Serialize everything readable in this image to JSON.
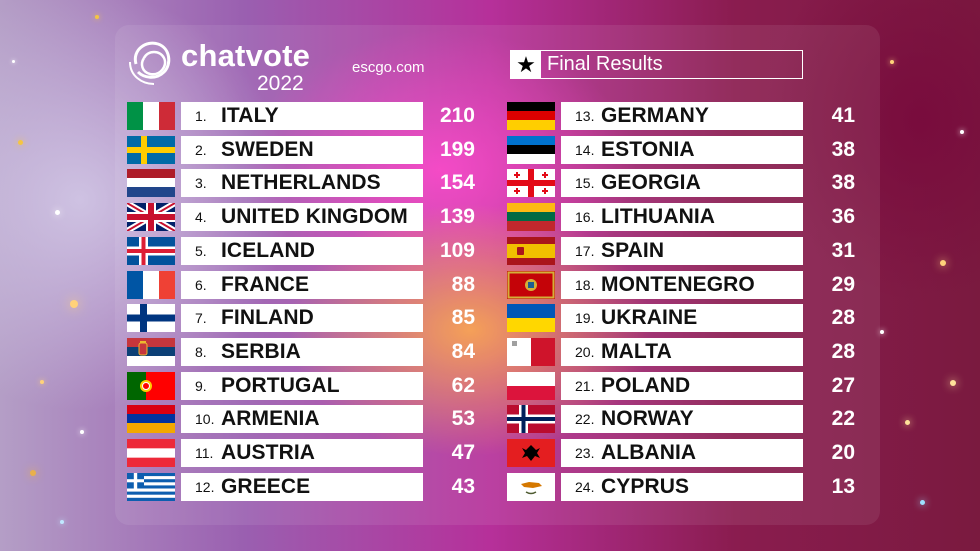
{
  "brand": {
    "name": "chatvote",
    "year": "2022",
    "site": "escgo.com"
  },
  "header": {
    "star": "★",
    "title": "Final Results"
  },
  "left_column": [
    {
      "rank": "1.",
      "country": "ITALY",
      "points": "210",
      "flag": "italy"
    },
    {
      "rank": "2.",
      "country": "SWEDEN",
      "points": "199",
      "flag": "sweden"
    },
    {
      "rank": "3.",
      "country": "NETHERLANDS",
      "points": "154",
      "flag": "netherlands"
    },
    {
      "rank": "4.",
      "country": "UNITED KINGDOM",
      "points": "139",
      "flag": "united-kingdom"
    },
    {
      "rank": "5.",
      "country": "ICELAND",
      "points": "109",
      "flag": "iceland"
    },
    {
      "rank": "6.",
      "country": "FRANCE",
      "points": "88",
      "flag": "france"
    },
    {
      "rank": "7.",
      "country": "FINLAND",
      "points": "85",
      "flag": "finland"
    },
    {
      "rank": "8.",
      "country": "SERBIA",
      "points": "84",
      "flag": "serbia"
    },
    {
      "rank": "9.",
      "country": "PORTUGAL",
      "points": "62",
      "flag": "portugal"
    },
    {
      "rank": "10.",
      "country": "ARMENIA",
      "points": "53",
      "flag": "armenia"
    },
    {
      "rank": "11.",
      "country": "AUSTRIA",
      "points": "47",
      "flag": "austria"
    },
    {
      "rank": "12.",
      "country": "GREECE",
      "points": "43",
      "flag": "greece"
    }
  ],
  "right_column": [
    {
      "rank": "13.",
      "country": "GERMANY",
      "points": "41",
      "flag": "germany"
    },
    {
      "rank": "14.",
      "country": "ESTONIA",
      "points": "38",
      "flag": "estonia"
    },
    {
      "rank": "15.",
      "country": "GEORGIA",
      "points": "38",
      "flag": "georgia"
    },
    {
      "rank": "16.",
      "country": "LITHUANIA",
      "points": "36",
      "flag": "lithuania"
    },
    {
      "rank": "17.",
      "country": "SPAIN",
      "points": "31",
      "flag": "spain"
    },
    {
      "rank": "18.",
      "country": "MONTENEGRO",
      "points": "29",
      "flag": "montenegro"
    },
    {
      "rank": "19.",
      "country": "UKRAINE",
      "points": "28",
      "flag": "ukraine"
    },
    {
      "rank": "20.",
      "country": "MALTA",
      "points": "28",
      "flag": "malta"
    },
    {
      "rank": "21.",
      "country": "POLAND",
      "points": "27",
      "flag": "poland"
    },
    {
      "rank": "22.",
      "country": "NORWAY",
      "points": "22",
      "flag": "norway"
    },
    {
      "rank": "23.",
      "country": "ALBANIA",
      "points": "20",
      "flag": "albania"
    },
    {
      "rank": "24.",
      "country": "CYPRUS",
      "points": "13",
      "flag": "cyprus"
    }
  ]
}
